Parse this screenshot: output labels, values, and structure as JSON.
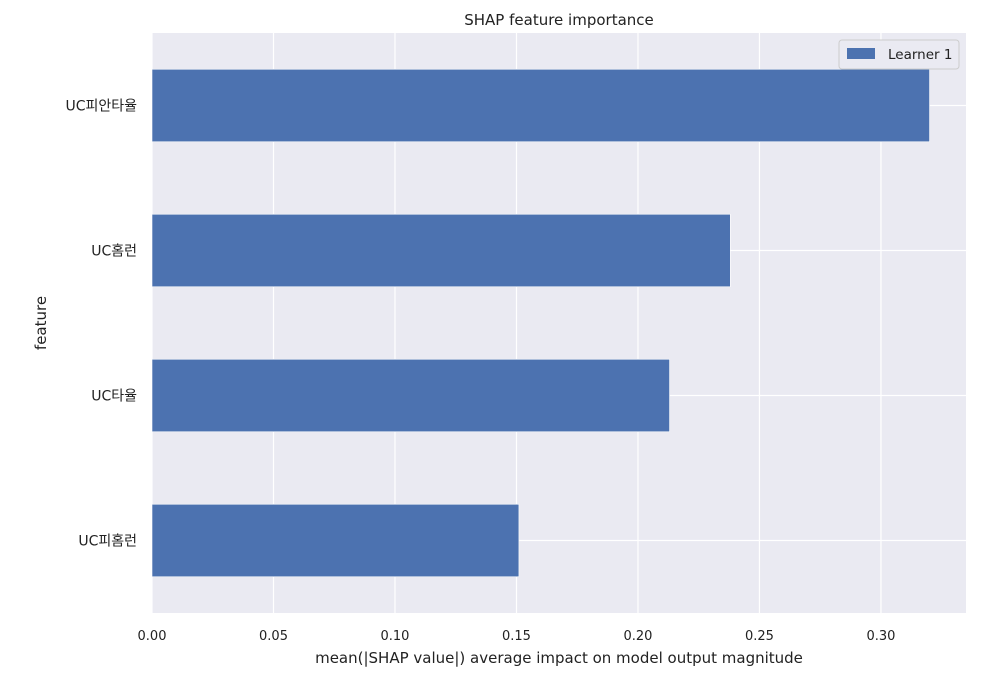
{
  "chart_data": {
    "type": "bar",
    "orientation": "horizontal",
    "title": "SHAP feature importance",
    "xlabel": "mean(|SHAP value|) average impact on model output magnitude",
    "ylabel": "feature",
    "categories": [
      "UC피안타율",
      "UC홈런",
      "UC타율",
      "UC피홈런"
    ],
    "series": [
      {
        "name": "Learner 1",
        "values": [
          0.32,
          0.238,
          0.213,
          0.151
        ]
      }
    ],
    "xlim": [
      0.0,
      0.335
    ],
    "xticks": [
      0.0,
      0.05,
      0.1,
      0.15,
      0.2,
      0.25,
      0.3
    ],
    "xtick_labels": [
      "0.00",
      "0.05",
      "0.10",
      "0.15",
      "0.20",
      "0.25",
      "0.30"
    ],
    "grid": true,
    "legend_position": "top-right",
    "colors": {
      "bar": "#4c72b0",
      "plot_background": "#eaeaf2",
      "grid": "#ffffff"
    }
  }
}
